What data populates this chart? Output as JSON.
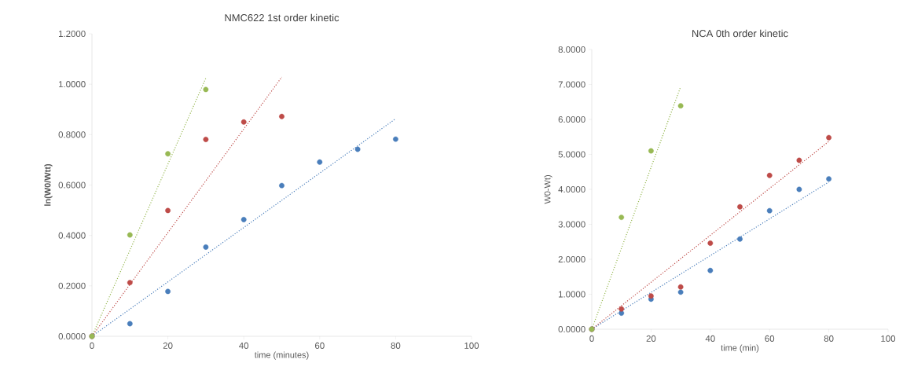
{
  "chart_data": [
    {
      "type": "scatter",
      "title": "NMC622 1st order kinetic",
      "xlabel": "time (minutes)",
      "ylabel": "**ln(W0/Wtt)**",
      "marker": "circle",
      "xlim": [
        0,
        100
      ],
      "xticks": [
        0,
        20,
        40,
        60,
        80,
        100
      ],
      "ylim": [
        0,
        1.2
      ],
      "yticks": [
        {
          "value": 0,
          "label": "0.0000"
        },
        {
          "value": 0.2,
          "label": "0.2000"
        },
        {
          "value": 0.4,
          "label": "0.4000"
        },
        {
          "value": 0.6,
          "label": "0.6000"
        },
        {
          "value": 0.8,
          "label": "0.8000"
        },
        {
          "value": 1.0,
          "label": "1.0000"
        },
        {
          "value": 1.2,
          "label": "1.2000"
        }
      ],
      "series": [
        {
          "type": "scatter",
          "color": "#4a7ebb",
          "x": [
            0,
            10,
            20,
            30,
            40,
            50,
            60,
            70,
            80
          ],
          "values": [
            0,
            0.05,
            0.178,
            0.354,
            0.463,
            0.598,
            0.691,
            0.742,
            0.782
          ]
        },
        {
          "type": "scatter",
          "color": "#be4b48",
          "x": [
            0,
            10,
            20,
            30,
            40,
            50
          ],
          "values": [
            0,
            0.213,
            0.499,
            0.781,
            0.85,
            0.872
          ]
        },
        {
          "type": "scatter",
          "color": "#98b954",
          "x": [
            0,
            10,
            20,
            30
          ],
          "values": [
            0,
            0.402,
            0.724,
            0.979
          ]
        },
        {
          "type": "line",
          "color": "#4a7ebb",
          "line_style": "dotted",
          "marker": "none",
          "x": [
            0,
            80
          ],
          "values": [
            0,
            0.863
          ]
        },
        {
          "type": "line",
          "color": "#be4b48",
          "line_style": "dotted",
          "marker": "none",
          "x": [
            0,
            50
          ],
          "values": [
            0,
            1.028
          ]
        },
        {
          "type": "line",
          "color": "#98b954",
          "line_style": "dotted",
          "marker": "none",
          "x": [
            0,
            30
          ],
          "values": [
            0,
            1.024
          ]
        }
      ]
    },
    {
      "type": "scatter",
      "title": "NCA 0th order kinetic",
      "xlabel": "time (min)",
      "ylabel": "W0-Wt)",
      "marker": "circle",
      "xlim": [
        0,
        100
      ],
      "xticks": [
        0,
        20,
        40,
        60,
        80,
        100
      ],
      "ylim": [
        0,
        8
      ],
      "yticks": [
        {
          "value": 0,
          "label": "0.0000"
        },
        {
          "value": 1,
          "label": "1.0000"
        },
        {
          "value": 2,
          "label": "2.0000"
        },
        {
          "value": 3,
          "label": "3.0000"
        },
        {
          "value": 4,
          "label": "4.0000"
        },
        {
          "value": 5,
          "label": "5.0000"
        },
        {
          "value": 6,
          "label": "6.0000"
        },
        {
          "value": 7,
          "label": "7.0000"
        },
        {
          "value": 8,
          "label": "8.0000"
        }
      ],
      "series": [
        {
          "type": "scatter",
          "color": "#4a7ebb",
          "x": [
            0,
            10,
            20,
            30,
            40,
            50,
            60,
            70,
            80
          ],
          "values": [
            0,
            0.46,
            0.86,
            1.06,
            1.68,
            2.58,
            3.39,
            4.0,
            4.3
          ]
        },
        {
          "type": "scatter",
          "color": "#be4b48",
          "x": [
            0,
            10,
            20,
            30,
            40,
            50,
            60,
            70,
            80
          ],
          "values": [
            0,
            0.58,
            0.95,
            1.21,
            2.46,
            3.5,
            4.4,
            4.83,
            5.48
          ]
        },
        {
          "type": "scatter",
          "color": "#98b954",
          "x": [
            0,
            10,
            20,
            30
          ],
          "values": [
            0,
            3.2,
            5.1,
            6.39
          ]
        },
        {
          "type": "line",
          "color": "#4a7ebb",
          "line_style": "dotted",
          "marker": "none",
          "x": [
            0,
            80
          ],
          "values": [
            0,
            4.21
          ]
        },
        {
          "type": "line",
          "color": "#be4b48",
          "line_style": "dotted",
          "marker": "none",
          "x": [
            0,
            80
          ],
          "values": [
            0,
            5.37
          ]
        },
        {
          "type": "line",
          "color": "#98b954",
          "line_style": "dotted",
          "marker": "none",
          "x": [
            0,
            30
          ],
          "values": [
            0,
            6.94
          ]
        }
      ]
    }
  ]
}
